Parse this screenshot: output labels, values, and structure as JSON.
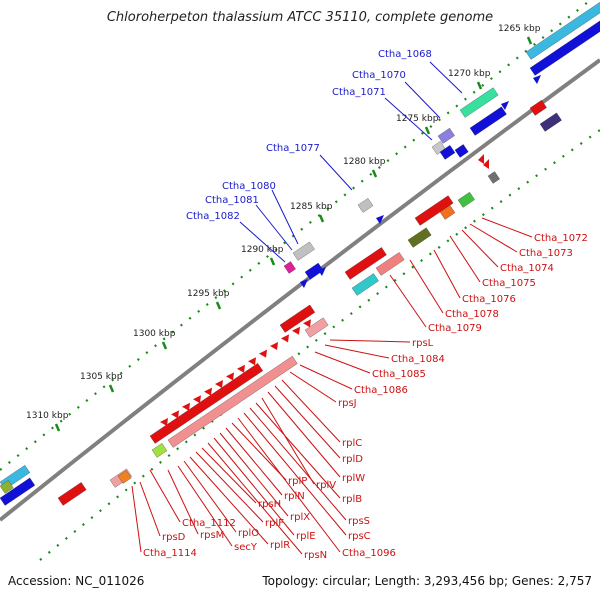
{
  "title": "Chloroherpeton thalassium ATCC 35110, complete genome",
  "footer": {
    "accession": "Accession: NC_011026",
    "summary": "Topology: circular; Length: 3,293,456 bp; Genes: 2,757"
  },
  "colors": {
    "forward_label": "#1a1acc",
    "reverse_label": "#cc1111",
    "backbone": "#808080",
    "tick": "#1a8a1a"
  },
  "kbp_ticks": [
    "1265 kbp",
    "1270 kbp",
    "1275 kbp",
    "1280 kbp",
    "1285 kbp",
    "1290 kbp",
    "1295 kbp",
    "1300 kbp",
    "1305 kbp",
    "1310 kbp"
  ],
  "forward_labels": [
    "Ctha_1068",
    "Ctha_1070",
    "Ctha_1071",
    "Ctha_1077",
    "Ctha_1080",
    "Ctha_1081",
    "Ctha_1082"
  ],
  "reverse_labels": [
    "Ctha_1072",
    "Ctha_1073",
    "Ctha_1074",
    "Ctha_1075",
    "Ctha_1076",
    "Ctha_1078",
    "Ctha_1079",
    "rpsL",
    "Ctha_1084",
    "Ctha_1085",
    "Ctha_1086",
    "rpsJ",
    "rplC",
    "rplD",
    "rplW",
    "rplV",
    "rplB",
    "rpsS",
    "rpsC",
    "Ctha_1096",
    "rplP",
    "rplN",
    "rplX",
    "rplE",
    "rpsN",
    "rpsH",
    "rplF",
    "rplR",
    "rplO",
    "secY",
    "rpsM",
    "Ctha_1112",
    "rpsD",
    "Ctha_1114"
  ]
}
